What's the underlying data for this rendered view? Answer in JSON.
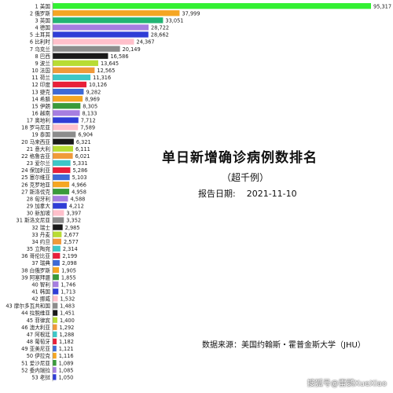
{
  "title": "单日新增确诊病例数排名",
  "subtitle": "（超千例）",
  "report_date_label": "报告日期:",
  "report_date_value": "2021-11-10",
  "source": "数据来源：美国约翰斯・霍普金斯大学（JHU）",
  "watermark": "搜狐号@雷鹦XueXiao",
  "chart_data": {
    "type": "bar",
    "orientation": "horizontal",
    "title": "单日新增确诊病例数排名",
    "subtitle": "（超千例）",
    "categories": [
      "1 美国",
      "2 俄罗斯",
      "3 英国",
      "4 德国",
      "5 土耳其",
      "6 比利时",
      "7 乌克兰",
      "8 巴西",
      "9 波兰",
      "10 法国",
      "11 荷兰",
      "12 印度",
      "13 捷克",
      "14 希腊",
      "15 伊朗",
      "16 越南",
      "17 奥地利",
      "18 罗马尼亚",
      "19 泰国",
      "20 马来西亚",
      "21 意大利",
      "22 格鲁吉亚",
      "23 爱尔兰",
      "24 保加利亚",
      "25 塞尔维亚",
      "26 克罗地亚",
      "27 斯洛伐克",
      "28 匈牙利",
      "29 加拿大",
      "30 新加坡",
      "31 斯洛文尼亚",
      "32 瑞士",
      "33 丹麦",
      "34 约旦",
      "35 立陶宛",
      "36 哥伦比亚",
      "37 瑞典",
      "38 白俄罗斯",
      "39 阿塞拜疆",
      "40 智利",
      "41 韩国",
      "42 挪威",
      "43 摩尔多瓦共和国",
      "44 拉脱维亚",
      "45 菲律宾",
      "46 澳大利亚",
      "47 阿根廷",
      "48 葡萄牙",
      "49 亚美尼亚",
      "50 伊拉克",
      "51 爱沙尼亚",
      "52 委内瑞拉",
      "53 老挝"
    ],
    "values": [
      95317,
      37999,
      33051,
      28722,
      28662,
      24367,
      20149,
      16586,
      13645,
      12565,
      11316,
      10126,
      9282,
      8969,
      8305,
      8133,
      7712,
      7589,
      6904,
      6321,
      6111,
      6021,
      5331,
      5286,
      5103,
      4966,
      4958,
      4588,
      4212,
      3397,
      3352,
      2985,
      2677,
      2577,
      2314,
      2199,
      2098,
      1905,
      1855,
      1746,
      1713,
      1532,
      1483,
      1451,
      1400,
      1292,
      1288,
      1182,
      1121,
      1116,
      1089,
      1085,
      1050
    ],
    "value_labels": [
      "95,317",
      "37,999",
      "33,051",
      "28,722",
      "28,662",
      "24,367",
      "20,149",
      "16,586",
      "13,645",
      "12,565",
      "11,316",
      "10,126",
      "9,282",
      "8,969",
      "8,305",
      "8,133",
      "7,712",
      "7,589",
      "6,904",
      "6,321",
      "6,111",
      "6,021",
      "5,331",
      "5,286",
      "5,103",
      "4,966",
      "4,958",
      "4,588",
      "4,212",
      "3,397",
      "3,352",
      "2,985",
      "2,677",
      "2,577",
      "2,314",
      "2,199",
      "2,098",
      "1,905",
      "1,855",
      "1,746",
      "1,713",
      "1,532",
      "1,483",
      "1,451",
      "1,400",
      "1,292",
      "1,288",
      "1,182",
      "1,121",
      "1,116",
      "1,089",
      "1,085",
      "1,050"
    ],
    "colors": [
      "#33f033",
      "#f5a623",
      "#22b573",
      "#a67ee0",
      "#2f3dd6",
      "#ffc0cb",
      "#8c8c8c",
      "#1a1a1a",
      "#b8dc34",
      "#f09a3a",
      "#3ec7c7",
      "#e8203a",
      "#3e6ad6",
      "#f5a623",
      "#3a9a3a",
      "#a67ee0",
      "#2f3dd6",
      "#ffc0cb",
      "#8c8c8c",
      "#1a1a1a",
      "#b8dc34",
      "#f09a3a",
      "#3ec7c7",
      "#e8203a",
      "#3e6ad6",
      "#f5a623",
      "#3a9a3a",
      "#a67ee0",
      "#2f3dd6",
      "#ffc0cb",
      "#8c8c8c",
      "#1a1a1a",
      "#b8dc34",
      "#f09a3a",
      "#3ec7c7",
      "#e8203a",
      "#3e6ad6",
      "#f5a623",
      "#3a9a3a",
      "#a67ee0",
      "#2f3dd6",
      "#ffc0cb",
      "#8c8c8c",
      "#1a1a1a",
      "#b8dc34",
      "#f09a3a",
      "#3ec7c7",
      "#e8203a",
      "#3e6ad6",
      "#f5a623",
      "#3a9a3a",
      "#a67ee0",
      "#2f3dd6"
    ],
    "xlim": [
      0,
      95317
    ],
    "grid": false,
    "legend": "none"
  }
}
